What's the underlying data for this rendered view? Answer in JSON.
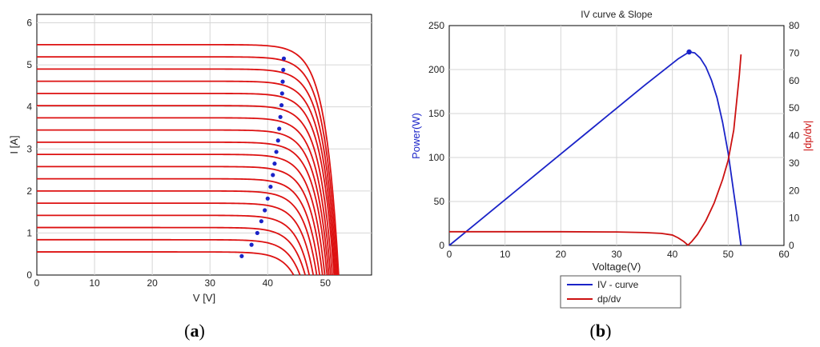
{
  "chart_data": [
    {
      "panel": "a",
      "type": "line",
      "caption_open": "(",
      "caption_letter": "a",
      "caption_close": ")",
      "xlabel": "V [V]",
      "ylabel": "I [A]",
      "xlim": [
        0,
        58
      ],
      "ylim": [
        0,
        6.2
      ],
      "xticks": [
        0,
        10,
        20,
        30,
        40,
        50
      ],
      "yticks": [
        0,
        1,
        2,
        3,
        4,
        5,
        6
      ],
      "grid": true,
      "line_color": "#dd1111",
      "marker_color": "#1a23c8",
      "series": [
        {
          "isc": 0.55,
          "voc": 44.5,
          "mpp": [
            35.5,
            0.45
          ]
        },
        {
          "isc": 0.84,
          "voc": 45.6,
          "mpp": [
            37.2,
            0.72
          ]
        },
        {
          "isc": 1.13,
          "voc": 46.5,
          "mpp": [
            38.2,
            1.0
          ]
        },
        {
          "isc": 1.42,
          "voc": 47.2,
          "mpp": [
            38.9,
            1.28
          ]
        },
        {
          "isc": 1.71,
          "voc": 47.9,
          "mpp": [
            39.5,
            1.54
          ]
        },
        {
          "isc": 2.0,
          "voc": 48.5,
          "mpp": [
            40.0,
            1.82
          ]
        },
        {
          "isc": 2.29,
          "voc": 49.0,
          "mpp": [
            40.5,
            2.1
          ]
        },
        {
          "isc": 2.58,
          "voc": 49.5,
          "mpp": [
            40.9,
            2.38
          ]
        },
        {
          "isc": 2.87,
          "voc": 49.9,
          "mpp": [
            41.2,
            2.65
          ]
        },
        {
          "isc": 3.16,
          "voc": 50.3,
          "mpp": [
            41.5,
            2.93
          ]
        },
        {
          "isc": 3.45,
          "voc": 50.6,
          "mpp": [
            41.8,
            3.2
          ]
        },
        {
          "isc": 3.74,
          "voc": 50.9,
          "mpp": [
            42.0,
            3.48
          ]
        },
        {
          "isc": 4.03,
          "voc": 51.2,
          "mpp": [
            42.2,
            3.76
          ]
        },
        {
          "isc": 4.32,
          "voc": 51.5,
          "mpp": [
            42.4,
            4.04
          ]
        },
        {
          "isc": 4.61,
          "voc": 51.7,
          "mpp": [
            42.5,
            4.32
          ]
        },
        {
          "isc": 4.9,
          "voc": 51.9,
          "mpp": [
            42.6,
            4.6
          ]
        },
        {
          "isc": 5.19,
          "voc": 52.1,
          "mpp": [
            42.7,
            4.88
          ]
        },
        {
          "isc": 5.48,
          "voc": 52.3,
          "mpp": [
            42.8,
            5.15
          ]
        }
      ]
    },
    {
      "panel": "b",
      "type": "line",
      "caption_open": "(",
      "caption_letter": "b",
      "caption_close": ")",
      "title": "IV curve & Slope",
      "xlabel": "Voltage(V)",
      "ylabel_left": "Power(W)",
      "ylabel_right": "|dp/dv|",
      "xlim": [
        0,
        60
      ],
      "ylim_left": [
        0,
        250
      ],
      "ylim_right": [
        0,
        80
      ],
      "xticks": [
        0,
        10,
        20,
        30,
        40,
        50,
        60
      ],
      "yticks_left": [
        0,
        50,
        100,
        150,
        200,
        250
      ],
      "yticks_right": [
        0,
        10,
        20,
        30,
        40,
        50,
        60,
        70,
        80
      ],
      "grid": true,
      "legend_position": "bottom-center",
      "series": [
        {
          "name": "IV - curve",
          "color": "#1a23c8",
          "axis": "left",
          "x": [
            0,
            5,
            10,
            15,
            20,
            25,
            30,
            35,
            38,
            40,
            41,
            42,
            43,
            44,
            45,
            46,
            47,
            48,
            49,
            50,
            51,
            51.5,
            52,
            52.3
          ],
          "y": [
            0,
            26,
            52,
            78,
            104,
            130,
            156,
            182,
            197,
            207,
            212,
            216,
            220,
            219,
            213,
            203,
            188,
            168,
            140,
            105,
            60,
            38,
            14,
            0
          ]
        },
        {
          "name": "dp/dv",
          "color": "#cc1111",
          "axis": "right",
          "x": [
            0,
            5,
            10,
            20,
            30,
            35,
            38,
            40,
            41,
            42,
            42.8,
            43.5,
            44.5,
            46,
            47.5,
            49,
            50,
            51,
            52,
            52.3
          ],
          "y": [
            5.0,
            5.0,
            5.0,
            5.0,
            4.9,
            4.7,
            4.4,
            3.8,
            2.8,
            1.5,
            0.1,
            1.5,
            4.0,
            9.0,
            15.5,
            24.0,
            31.0,
            42.0,
            62.0,
            69.5
          ]
        }
      ],
      "mpp_marker": {
        "x": 43.0,
        "y": 220,
        "color": "#1a23c8"
      }
    }
  ]
}
